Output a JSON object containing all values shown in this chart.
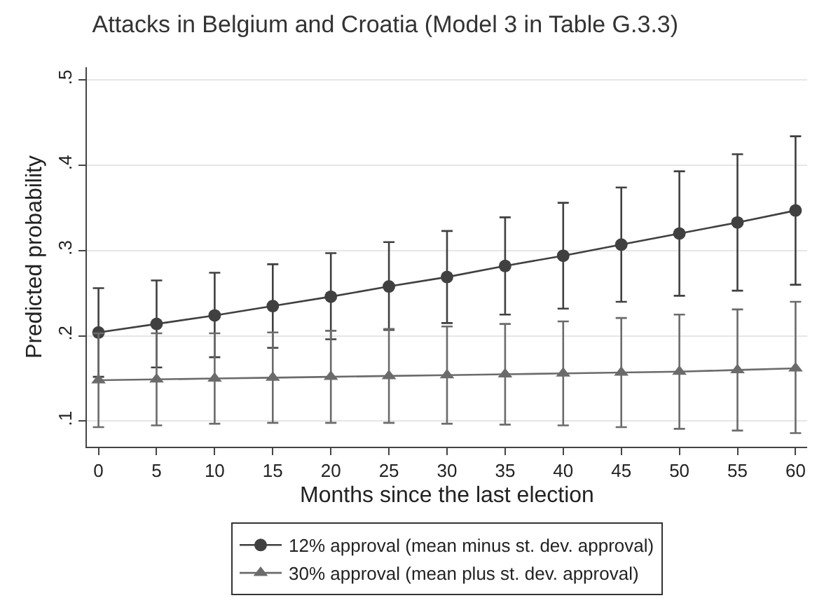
{
  "chart_data": {
    "type": "line",
    "title": "Attacks in Belgium and Croatia (Model 3 in Table G.3.3)",
    "xlabel": "Months since the last election",
    "ylabel": "Predicted probability",
    "x": [
      0,
      5,
      10,
      15,
      20,
      25,
      30,
      35,
      40,
      45,
      50,
      55,
      60
    ],
    "series": [
      {
        "name": "12% approval (mean minus st. dev. approval)",
        "color": "#404040",
        "marker": "circle",
        "values": [
          0.204,
          0.214,
          0.224,
          0.235,
          0.246,
          0.258,
          0.269,
          0.282,
          0.294,
          0.307,
          0.32,
          0.333,
          0.347
        ],
        "errors": [
          [
            0.152,
            0.256
          ],
          [
            0.163,
            0.265
          ],
          [
            0.175,
            0.274
          ],
          [
            0.186,
            0.284
          ],
          [
            0.196,
            0.297
          ],
          [
            0.207,
            0.31
          ],
          [
            0.215,
            0.323
          ],
          [
            0.225,
            0.339
          ],
          [
            0.232,
            0.356
          ],
          [
            0.24,
            0.374
          ],
          [
            0.247,
            0.393
          ],
          [
            0.253,
            0.413
          ],
          [
            0.26,
            0.434
          ]
        ]
      },
      {
        "name": "30% approval (mean plus st. dev. approval)",
        "color": "#6b6b6b",
        "marker": "triangle",
        "values": [
          0.148,
          0.149,
          0.15,
          0.151,
          0.152,
          0.153,
          0.154,
          0.155,
          0.156,
          0.157,
          0.158,
          0.16,
          0.162
        ],
        "errors": [
          [
            0.093,
            0.203
          ],
          [
            0.095,
            0.203
          ],
          [
            0.097,
            0.203
          ],
          [
            0.098,
            0.204
          ],
          [
            0.098,
            0.206
          ],
          [
            0.098,
            0.208
          ],
          [
            0.097,
            0.211
          ],
          [
            0.096,
            0.214
          ],
          [
            0.095,
            0.217
          ],
          [
            0.093,
            0.221
          ],
          [
            0.091,
            0.225
          ],
          [
            0.089,
            0.231
          ],
          [
            0.086,
            0.24
          ]
        ]
      }
    ],
    "xlim": [
      -1,
      61
    ],
    "xticks": [
      0,
      5,
      10,
      15,
      20,
      25,
      30,
      35,
      40,
      45,
      50,
      55,
      60
    ],
    "ylim": [
      0.07,
      0.515
    ],
    "yticks": [
      {
        "value": 0.1,
        "label": ".1"
      },
      {
        "value": 0.2,
        "label": ".2"
      },
      {
        "value": 0.3,
        "label": ".3"
      },
      {
        "value": 0.4,
        "label": ".4"
      },
      {
        "value": 0.5,
        "label": ".5"
      }
    ],
    "grid": "y",
    "legend": "bottom",
    "line_style": "solid"
  }
}
